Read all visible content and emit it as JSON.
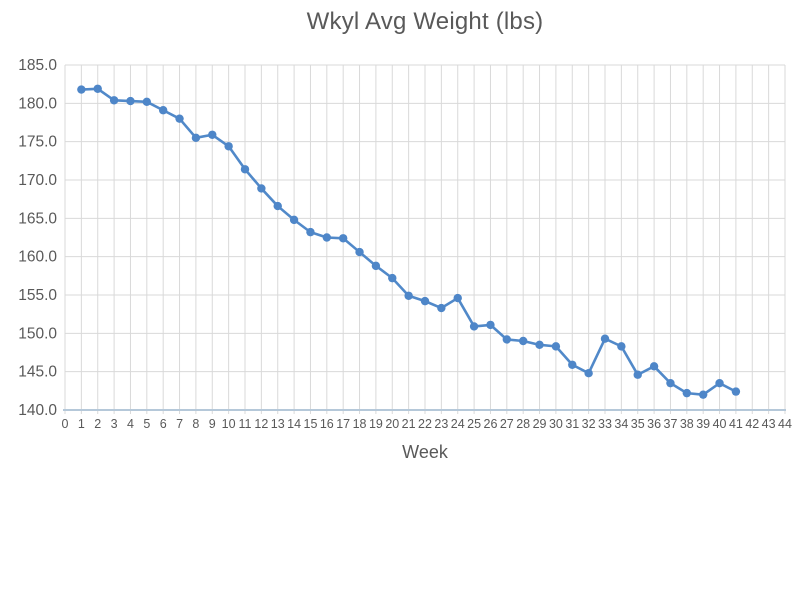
{
  "page": {
    "background": "#ffffff"
  },
  "chart_data": {
    "type": "line",
    "title": "Wkyl Avg Weight (lbs)",
    "xlabel": "Week",
    "ylabel": "",
    "legend": "none",
    "grid": true,
    "xlim": [
      0,
      44
    ],
    "x_tick_step": 1,
    "ylim": [
      140.0,
      185.0
    ],
    "y_tick_step": 5,
    "y_tick_decimals": 1,
    "colors": {
      "line": "#5189c9",
      "marker": "#4e86c8",
      "grid": "#d9d9d9",
      "axis_line": "#b5c8d9",
      "text": "#595959"
    },
    "series": [
      {
        "name": "Wkyl Avg Weight (lbs)",
        "x": [
          1,
          2,
          3,
          4,
          5,
          6,
          7,
          8,
          9,
          10,
          11,
          12,
          13,
          14,
          15,
          16,
          17,
          18,
          19,
          20,
          21,
          22,
          23,
          24,
          25,
          26,
          27,
          28,
          29,
          30,
          31,
          32,
          33,
          34,
          35,
          36,
          37,
          38,
          39,
          40,
          41
        ],
        "values": [
          181.8,
          181.9,
          180.4,
          180.3,
          180.2,
          179.1,
          178.0,
          175.5,
          175.9,
          174.4,
          171.4,
          168.9,
          166.6,
          164.8,
          163.2,
          162.5,
          162.4,
          160.6,
          158.8,
          157.2,
          154.9,
          154.2,
          153.3,
          154.6,
          150.9,
          151.1,
          149.2,
          149.0,
          148.5,
          148.3,
          145.9,
          144.8,
          149.3,
          148.3,
          144.6,
          145.7,
          143.5,
          142.2,
          142.0,
          143.5,
          142.4
        ]
      }
    ]
  }
}
